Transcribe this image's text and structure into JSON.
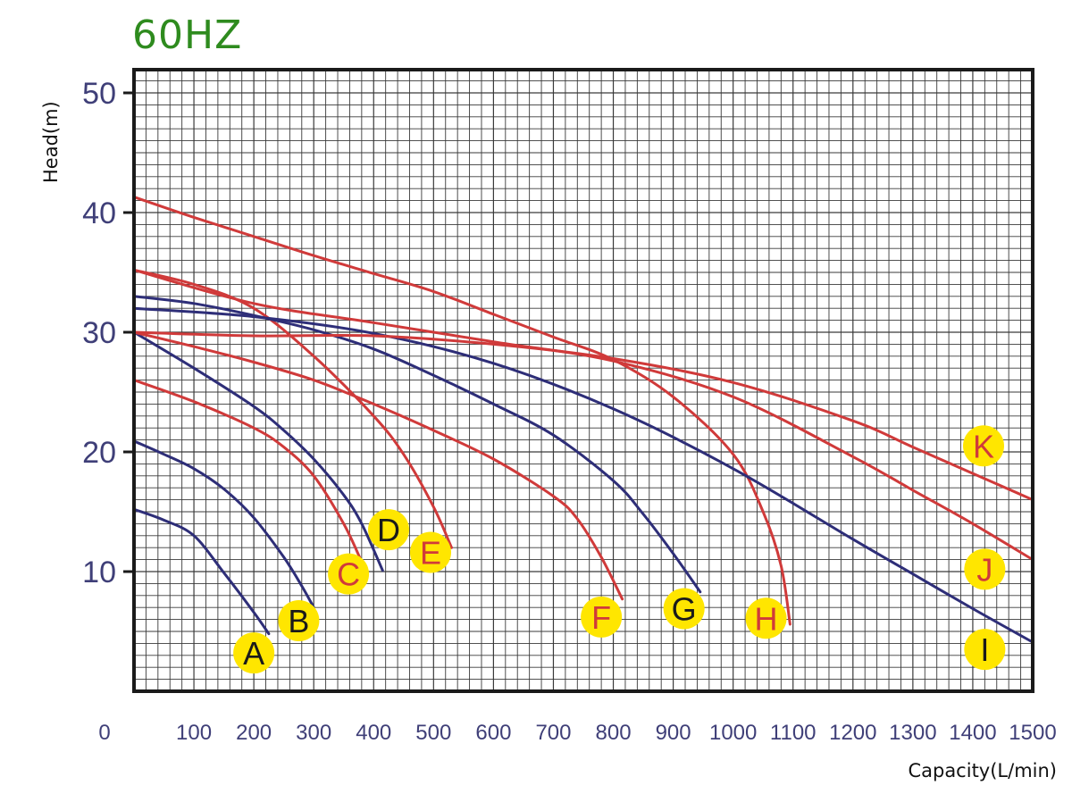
{
  "chart_data": {
    "type": "line",
    "title": "60HZ",
    "xlabel": "Capacity(L/min)",
    "ylabel": "Head(m)",
    "xlim": [
      0,
      1500
    ],
    "ylim": [
      0,
      52
    ],
    "x_ticks": [
      "0",
      "100",
      "200",
      "300",
      "400",
      "500",
      "600",
      "700",
      "800",
      "900",
      "1000",
      "1100",
      "1200",
      "1300",
      "1400",
      "1500"
    ],
    "y_ticks": [
      "10",
      "20",
      "30",
      "40",
      "50"
    ],
    "grid": true,
    "label_marker_color": "#ffe600",
    "series": [
      {
        "name": "A",
        "color": "#2e2e78",
        "x": [
          0,
          50,
          100,
          150,
          200,
          225
        ],
        "y": [
          15.2,
          14.3,
          13.0,
          9.9,
          6.6,
          4.8
        ]
      },
      {
        "name": "B",
        "color": "#2e2e78",
        "x": [
          0,
          50,
          100,
          150,
          200,
          250,
          280,
          300
        ],
        "y": [
          20.9,
          19.8,
          18.6,
          16.9,
          14.5,
          11.2,
          8.8,
          7.0
        ]
      },
      {
        "name": "C",
        "color": "#d03a3a",
        "x": [
          0,
          100,
          200,
          250,
          300,
          350,
          380
        ],
        "y": [
          26.0,
          24.2,
          22.0,
          20.4,
          18.0,
          14.0,
          10.8
        ]
      },
      {
        "name": "D",
        "color": "#2e2e78",
        "x": [
          0,
          100,
          200,
          250,
          300,
          350,
          380,
          415
        ],
        "y": [
          30.0,
          27.0,
          23.8,
          21.8,
          19.4,
          16.4,
          14.0,
          10.1
        ]
      },
      {
        "name": "E",
        "color": "#d03a3a",
        "x": [
          0,
          100,
          200,
          300,
          400,
          450,
          500,
          530
        ],
        "y": [
          35.2,
          34.0,
          32.0,
          28.0,
          23.0,
          19.8,
          15.4,
          12.0
        ]
      },
      {
        "name": "F",
        "color": "#d03a3a",
        "x": [
          0,
          100,
          200,
          300,
          400,
          500,
          600,
          700,
          740,
          780,
          815
        ],
        "y": [
          30.0,
          28.8,
          27.5,
          26.0,
          24.0,
          21.8,
          19.4,
          16.3,
          14.4,
          11.2,
          7.7
        ]
      },
      {
        "name": "G",
        "color": "#2e2e78",
        "x": [
          0,
          100,
          200,
          300,
          400,
          500,
          600,
          700,
          800,
          850,
          900,
          945
        ],
        "y": [
          33.0,
          32.4,
          31.4,
          30.2,
          28.6,
          26.4,
          24.0,
          21.4,
          17.6,
          14.8,
          11.5,
          8.3
        ]
      },
      {
        "name": "H",
        "color": "#d03a3a",
        "x": [
          0,
          100,
          200,
          300,
          400,
          500,
          600,
          700,
          800,
          900,
          1000,
          1050,
          1080,
          1095
        ],
        "y": [
          41.3,
          39.6,
          38.0,
          36.4,
          34.9,
          33.4,
          31.5,
          29.6,
          27.7,
          24.6,
          19.8,
          15.0,
          10.5,
          5.6
        ]
      },
      {
        "name": "I",
        "color": "#2e2e78",
        "x": [
          0,
          200,
          400,
          600,
          800,
          1000,
          1200,
          1300,
          1400,
          1500
        ],
        "y": [
          32.0,
          31.3,
          29.9,
          27.4,
          23.6,
          18.6,
          12.7,
          9.8,
          6.9,
          4.1
        ]
      },
      {
        "name": "J",
        "color": "#d03a3a",
        "x": [
          0,
          200,
          400,
          600,
          800,
          1000,
          1200,
          1300,
          1400,
          1500
        ],
        "y": [
          35.2,
          32.4,
          30.8,
          29.2,
          27.6,
          24.6,
          19.6,
          16.8,
          14.0,
          11.0
        ]
      },
      {
        "name": "K",
        "color": "#d03a3a",
        "x": [
          0,
          200,
          400,
          600,
          800,
          1000,
          1200,
          1300,
          1400,
          1500
        ],
        "y": [
          30.0,
          29.7,
          29.7,
          29.0,
          27.8,
          25.8,
          22.6,
          20.4,
          18.2,
          16.0
        ]
      }
    ],
    "curve_labels": [
      {
        "text": "A",
        "x": 200,
        "y": 3.2,
        "color": "#1a1a1a"
      },
      {
        "text": "B",
        "x": 275,
        "y": 5.9,
        "color": "#1a1a1a"
      },
      {
        "text": "C",
        "x": 358,
        "y": 9.8,
        "color": "#d03a3a"
      },
      {
        "text": "D",
        "x": 425,
        "y": 13.5,
        "color": "#1a1a1a"
      },
      {
        "text": "E",
        "x": 495,
        "y": 11.6,
        "color": "#d03a3a"
      },
      {
        "text": "F",
        "x": 780,
        "y": 6.2,
        "color": "#d03a3a"
      },
      {
        "text": "G",
        "x": 918,
        "y": 6.9,
        "color": "#1a1a1a"
      },
      {
        "text": "H",
        "x": 1055,
        "y": 6.1,
        "color": "#d03a3a"
      },
      {
        "text": "I",
        "x": 1420,
        "y": 3.5,
        "color": "#1a1a1a"
      },
      {
        "text": "J",
        "x": 1420,
        "y": 10.2,
        "color": "#d03a3a"
      },
      {
        "text": "K",
        "x": 1418,
        "y": 20.5,
        "color": "#d03a3a"
      }
    ]
  }
}
